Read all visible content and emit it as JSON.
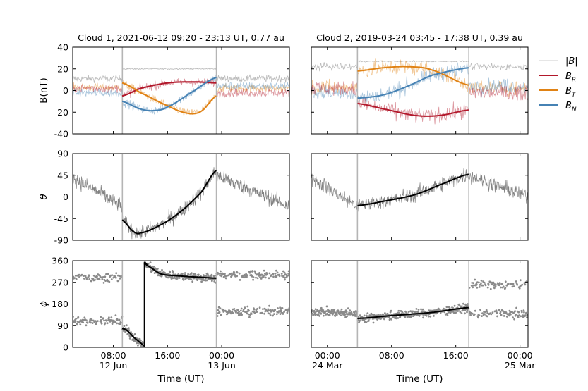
{
  "chart_data": {
    "type": "line",
    "legend": {
      "placement": "right",
      "entries": [
        {
          "label": "|B|",
          "color": "#cccccc"
        },
        {
          "label": "B_R",
          "color": "#b2182b"
        },
        {
          "label": "B_T",
          "color": "#e08214"
        },
        {
          "label": "B_N",
          "color": "#4682b4"
        }
      ]
    },
    "columns": [
      {
        "title": "Cloud 1, 2021-06-12 09:20 - 23:13 UT, 0.77 au",
        "xlabel": "Time (UT)",
        "xlim_hours": [
          2,
          34
        ],
        "boundaries_hours": [
          9.33,
          23.22
        ],
        "xticks": [
          {
            "hour": 8,
            "label": "08:00",
            "sub": "12 Jun"
          },
          {
            "hour": 16,
            "label": "16:00",
            "sub": ""
          },
          {
            "hour": 24,
            "label": "00:00",
            "sub": "13 Jun"
          }
        ],
        "fits": {
          "B_R": [
            [
              9.3,
              -5
            ],
            [
              12,
              2
            ],
            [
              16,
              7
            ],
            [
              20,
              8
            ],
            [
              23.2,
              7
            ]
          ],
          "B_T": [
            [
              9.3,
              7
            ],
            [
              12,
              -2
            ],
            [
              16,
              -14
            ],
            [
              19,
              -21
            ],
            [
              21,
              -19
            ],
            [
              23.2,
              -5
            ]
          ],
          "B_N": [
            [
              9.3,
              -10
            ],
            [
              12,
              -17
            ],
            [
              14,
              -18.5
            ],
            [
              16,
              -15
            ],
            [
              20,
              0
            ],
            [
              23.2,
              12
            ]
          ],
          "theta": [
            [
              9.3,
              -48
            ],
            [
              11,
              -72
            ],
            [
              12,
              -75
            ],
            [
              15,
              -58
            ],
            [
              18,
              -30
            ],
            [
              21,
              10
            ],
            [
              23.2,
              55
            ]
          ],
          "phi": [
            [
              9.3,
              78
            ],
            [
              10,
              70
            ],
            [
              11,
              42
            ],
            [
              12.6,
              5
            ],
            [
              12.6,
              355
            ],
            [
              13,
              340
            ],
            [
              15,
              305
            ],
            [
              18,
              296
            ],
            [
              21,
              291
            ],
            [
              23.2,
              287
            ]
          ]
        }
      },
      {
        "title": "Cloud 2, 2019-03-24 03:45 - 17:38 UT, 0.39 au",
        "xlabel": "Time (UT)",
        "xlim_hours": [
          -2,
          25
        ],
        "boundaries_hours": [
          3.75,
          17.63
        ],
        "xticks": [
          {
            "hour": 0,
            "label": "00:00",
            "sub": "24 Mar"
          },
          {
            "hour": 8,
            "label": "08:00",
            "sub": ""
          },
          {
            "hour": 16,
            "label": "16:00",
            "sub": ""
          },
          {
            "hour": 24,
            "label": "00:00",
            "sub": "25 Mar"
          }
        ],
        "fits": {
          "B_R": [
            [
              3.75,
              -12
            ],
            [
              7,
              -17
            ],
            [
              11,
              -23
            ],
            [
              14,
              -23
            ],
            [
              17.6,
              -18
            ]
          ],
          "B_T": [
            [
              3.75,
              18
            ],
            [
              7,
              21
            ],
            [
              10,
              22
            ],
            [
              13,
              19
            ],
            [
              17.6,
              5
            ]
          ],
          "B_N": [
            [
              3.75,
              -7
            ],
            [
              7,
              -4
            ],
            [
              10,
              4
            ],
            [
              13,
              14
            ],
            [
              17.6,
              21
            ]
          ],
          "theta": [
            [
              3.75,
              -18
            ],
            [
              7,
              -9
            ],
            [
              11,
              5
            ],
            [
              14.5,
              28
            ],
            [
              17.6,
              47
            ]
          ],
          "phi": [
            [
              3.75,
              120
            ],
            [
              8,
              132
            ],
            [
              13,
              145
            ],
            [
              17.6,
              165
            ]
          ]
        }
      }
    ],
    "rows": [
      {
        "ylabel": "B(nT)",
        "ylim": [
          -40,
          40
        ],
        "yticks": [
          -40,
          -20,
          0,
          20,
          40
        ]
      },
      {
        "ylabel": "θ",
        "ylim": [
          -90,
          90
        ],
        "yticks": [
          -90,
          -45,
          0,
          45,
          90
        ]
      },
      {
        "ylabel": "ϕ",
        "ylim": [
          0,
          360
        ],
        "yticks": [
          0,
          90,
          180,
          270,
          360
        ]
      }
    ]
  }
}
